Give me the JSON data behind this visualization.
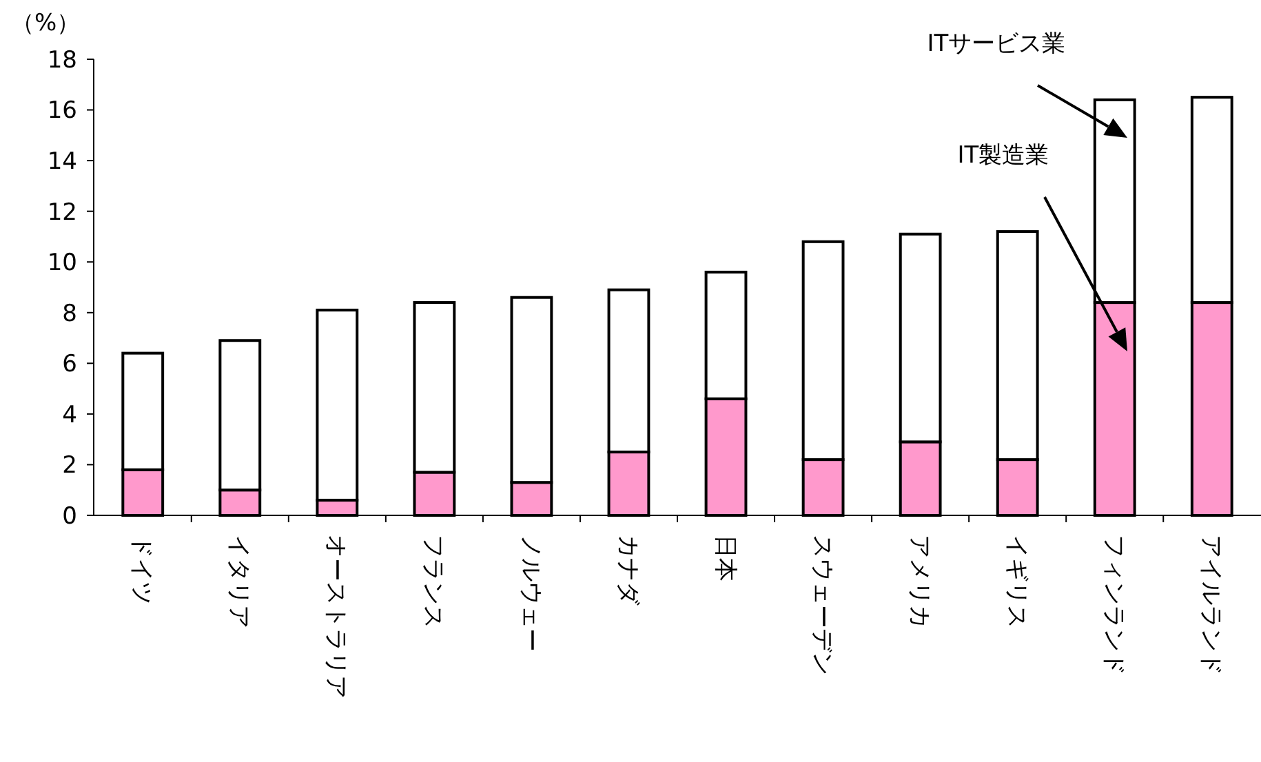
{
  "chart_data": {
    "type": "bar",
    "stacked": true,
    "ylabel": "（%）",
    "categories": [
      "ドイツ",
      "イタリア",
      "オーストラリア",
      "フランス",
      "ノルウェー",
      "カナダ",
      "日本",
      "スウェーデン",
      "アメリカ",
      "イギリス",
      "フィンランド",
      "アイルランド"
    ],
    "series": [
      {
        "color": "#ff99cc",
        "values": [
          1.8,
          1.0,
          0.6,
          1.7,
          1.3,
          2.5,
          4.6,
          2.2,
          2.9,
          2.2,
          8.4,
          8.4
        ]
      },
      {
        "color": "#ffffff",
        "values": [
          4.6,
          5.9,
          7.5,
          6.7,
          7.3,
          6.4,
          5.0,
          8.6,
          8.2,
          9.0,
          8.0,
          8.1
        ]
      }
    ],
    "ylim": [
      0,
      18
    ],
    "yticks": [
      0,
      2,
      4,
      6,
      8,
      10,
      12,
      14,
      16,
      18
    ],
    "grid": false,
    "annotations": [
      "ITサービス業",
      "IT製造業"
    ]
  }
}
